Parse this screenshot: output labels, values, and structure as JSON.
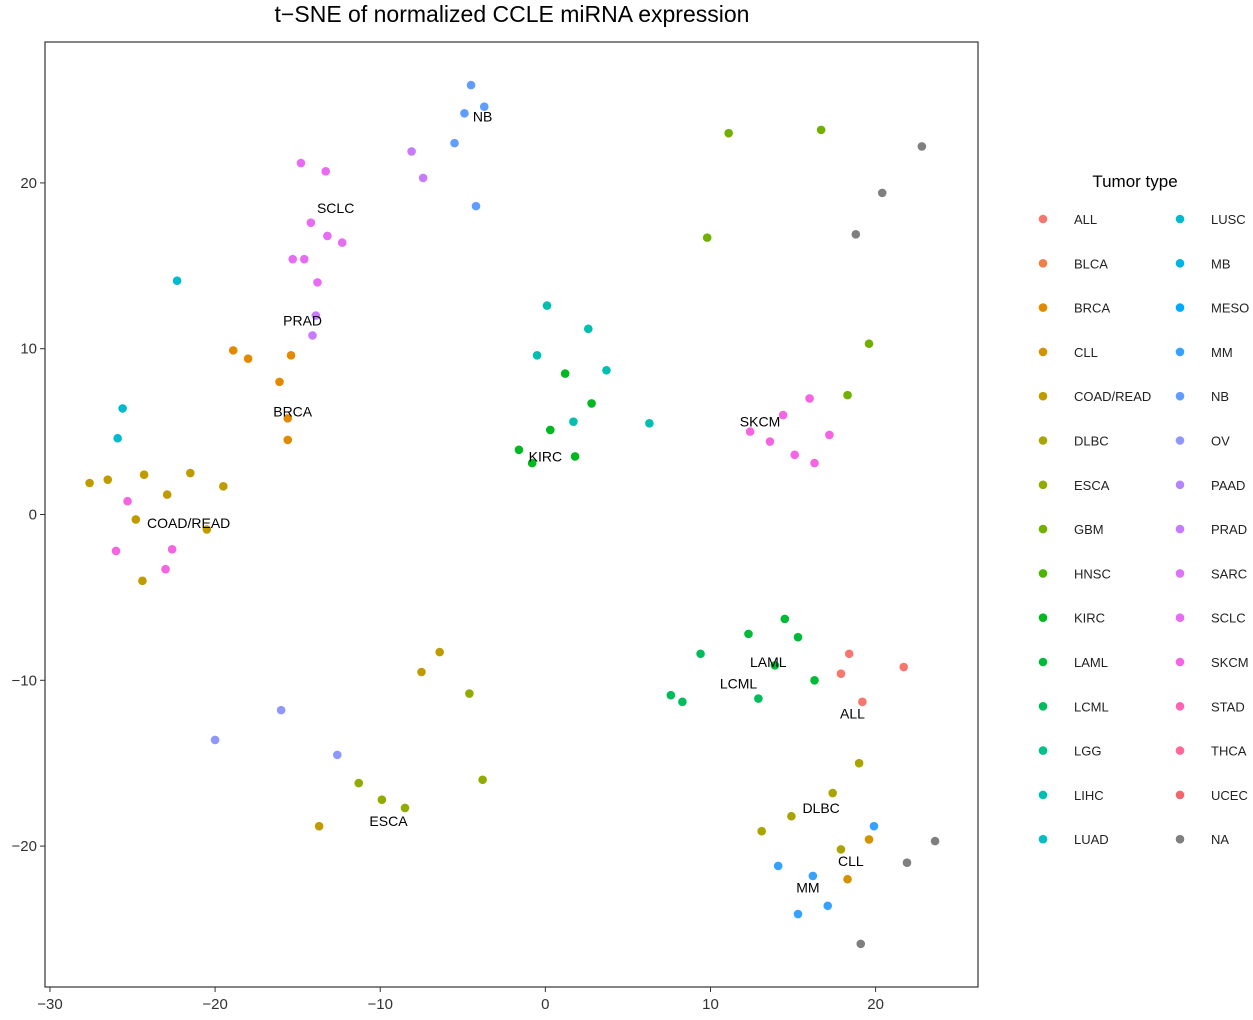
{
  "chart_data": {
    "type": "scatter",
    "title": "t−SNE of normalized CCLE miRNA expression",
    "xlabel": "",
    "ylabel": "",
    "xlim": [
      -30.3,
      26.2
    ],
    "ylim": [
      -28.5,
      28.5
    ],
    "x_ticks": [
      -30,
      -20,
      -10,
      0,
      10,
      20
    ],
    "x_tick_labels": [
      "−30",
      "−20",
      "−10",
      "0",
      "10",
      "20"
    ],
    "y_ticks": [
      -20,
      -10,
      0,
      10,
      20
    ],
    "y_tick_labels": [
      "−20",
      "−10",
      "0",
      "10",
      "20"
    ],
    "grid": false,
    "legend_position": "right",
    "legend_title": "Tumor type",
    "categories": [
      {
        "name": "ALL",
        "color": "#F8766D"
      },
      {
        "name": "BLCA",
        "color": "#EF7F47"
      },
      {
        "name": "BRCA",
        "color": "#E38900"
      },
      {
        "name": "CLL",
        "color": "#D39200"
      },
      {
        "name": "COAD/READ",
        "color": "#C09B00"
      },
      {
        "name": "DLBC",
        "color": "#A9A400"
      },
      {
        "name": "ESCA",
        "color": "#93AA00"
      },
      {
        "name": "GBM",
        "color": "#72B000"
      },
      {
        "name": "HNSC",
        "color": "#49B500"
      },
      {
        "name": "KIRC",
        "color": "#00B81F"
      },
      {
        "name": "LAML",
        "color": "#00BA38"
      },
      {
        "name": "LCML",
        "color": "#00BD5C"
      },
      {
        "name": "LGG",
        "color": "#00C08B"
      },
      {
        "name": "LIHC",
        "color": "#00BFB0"
      },
      {
        "name": "LUAD",
        "color": "#00BFC4"
      },
      {
        "name": "LUSC",
        "color": "#00BACF"
      },
      {
        "name": "MB",
        "color": "#00B4E5"
      },
      {
        "name": "MESO",
        "color": "#00A9FF"
      },
      {
        "name": "MM",
        "color": "#35A2FF"
      },
      {
        "name": "NB",
        "color": "#619CFF"
      },
      {
        "name": "OV",
        "color": "#8D97FF"
      },
      {
        "name": "PAAD",
        "color": "#B385FF"
      },
      {
        "name": "PRAD",
        "color": "#C77CFF"
      },
      {
        "name": "SARC",
        "color": "#DC71FA"
      },
      {
        "name": "SCLC",
        "color": "#E76BF3"
      },
      {
        "name": "SKCM",
        "color": "#F564E3"
      },
      {
        "name": "STAD",
        "color": "#FF64B0"
      },
      {
        "name": "THCA",
        "color": "#FF6A98"
      },
      {
        "name": "UCEC",
        "color": "#F2666E"
      },
      {
        "name": "NA",
        "color": "#7F7F7F"
      }
    ],
    "cluster_labels": [
      {
        "text": "NB",
        "x": -3.8,
        "y": 24
      },
      {
        "text": "SCLC",
        "x": -12.7,
        "y": 18.5
      },
      {
        "text": "PRAD",
        "x": -14.7,
        "y": 11.7
      },
      {
        "text": "BRCA",
        "x": -15.3,
        "y": 6.2
      },
      {
        "text": "COAD/READ",
        "x": -21.6,
        "y": -0.5
      },
      {
        "text": "KIRC",
        "x": 0,
        "y": 3.5
      },
      {
        "text": "SKCM",
        "x": 13,
        "y": 5.6
      },
      {
        "text": "LAML",
        "x": 13.5,
        "y": -8.9
      },
      {
        "text": "LCML",
        "x": 11.7,
        "y": -10.2
      },
      {
        "text": "ALL",
        "x": 18.6,
        "y": -12
      },
      {
        "text": "DLBC",
        "x": 16.7,
        "y": -17.7
      },
      {
        "text": "ESCA",
        "x": -9.5,
        "y": -18.5
      },
      {
        "text": "CLL",
        "x": 18.5,
        "y": -20.9
      },
      {
        "text": "MM",
        "x": 15.9,
        "y": -22.5
      }
    ],
    "points": [
      {
        "x": -4.5,
        "y": 25.9,
        "g": "NB"
      },
      {
        "x": -3.7,
        "y": 24.6,
        "g": "NB"
      },
      {
        "x": -4.9,
        "y": 24.2,
        "g": "NB"
      },
      {
        "x": -5.5,
        "y": 22.4,
        "g": "NB"
      },
      {
        "x": -4.2,
        "y": 18.6,
        "g": "NB"
      },
      {
        "x": -14.8,
        "y": 21.2,
        "g": "SCLC"
      },
      {
        "x": -13.3,
        "y": 20.7,
        "g": "SCLC"
      },
      {
        "x": -14.2,
        "y": 17.6,
        "g": "SCLC"
      },
      {
        "x": -13.2,
        "y": 16.8,
        "g": "SCLC"
      },
      {
        "x": -15.3,
        "y": 15.4,
        "g": "SCLC"
      },
      {
        "x": -14.6,
        "y": 15.4,
        "g": "SCLC"
      },
      {
        "x": -13.8,
        "y": 14.0,
        "g": "SCLC"
      },
      {
        "x": -12.3,
        "y": 16.4,
        "g": "SCLC"
      },
      {
        "x": -13.9,
        "y": 12.0,
        "g": "PRAD"
      },
      {
        "x": -14.1,
        "y": 10.8,
        "g": "PRAD"
      },
      {
        "x": -8.1,
        "y": 21.9,
        "g": "PRAD"
      },
      {
        "x": -7.4,
        "y": 20.3,
        "g": "PRAD"
      },
      {
        "x": -18.9,
        "y": 9.9,
        "g": "BRCA"
      },
      {
        "x": -18.0,
        "y": 9.4,
        "g": "BRCA"
      },
      {
        "x": -16.1,
        "y": 8.0,
        "g": "BRCA"
      },
      {
        "x": -15.6,
        "y": 5.8,
        "g": "BRCA"
      },
      {
        "x": -15.6,
        "y": 4.5,
        "g": "BRCA"
      },
      {
        "x": -15.4,
        "y": 9.6,
        "g": "BRCA"
      },
      {
        "x": -27.6,
        "y": 1.9,
        "g": "COAD/READ"
      },
      {
        "x": -26.5,
        "y": 2.1,
        "g": "COAD/READ"
      },
      {
        "x": -24.3,
        "y": 2.4,
        "g": "COAD/READ"
      },
      {
        "x": -21.5,
        "y": 2.5,
        "g": "COAD/READ"
      },
      {
        "x": -24.8,
        "y": -0.3,
        "g": "COAD/READ"
      },
      {
        "x": -22.9,
        "y": 1.2,
        "g": "COAD/READ"
      },
      {
        "x": -20.5,
        "y": -0.9,
        "g": "COAD/READ"
      },
      {
        "x": -19.5,
        "y": 1.7,
        "g": "COAD/READ"
      },
      {
        "x": -24.4,
        "y": -4.0,
        "g": "COAD/READ"
      },
      {
        "x": -25.3,
        "y": 0.8,
        "g": "SKCM"
      },
      {
        "x": -23.0,
        "y": -3.3,
        "g": "SKCM"
      },
      {
        "x": -26.0,
        "y": -2.2,
        "g": "SKCM"
      },
      {
        "x": -22.6,
        "y": -2.1,
        "g": "SKCM"
      },
      {
        "x": -25.6,
        "y": 6.4,
        "g": "LUSC"
      },
      {
        "x": -25.9,
        "y": 4.6,
        "g": "LUSC"
      },
      {
        "x": -22.3,
        "y": 14.1,
        "g": "LUSC"
      },
      {
        "x": 0.1,
        "y": 12.6,
        "g": "LIHC"
      },
      {
        "x": 2.6,
        "y": 11.2,
        "g": "LIHC"
      },
      {
        "x": -0.5,
        "y": 9.6,
        "g": "LIHC"
      },
      {
        "x": 1.7,
        "y": 5.6,
        "g": "LIHC"
      },
      {
        "x": 3.7,
        "y": 8.7,
        "g": "LIHC"
      },
      {
        "x": 6.3,
        "y": 5.5,
        "g": "LIHC"
      },
      {
        "x": 1.2,
        "y": 8.5,
        "g": "KIRC"
      },
      {
        "x": -1.6,
        "y": 3.9,
        "g": "KIRC"
      },
      {
        "x": 0.3,
        "y": 5.1,
        "g": "KIRC"
      },
      {
        "x": 2.8,
        "y": 6.7,
        "g": "KIRC"
      },
      {
        "x": 1.8,
        "y": 3.5,
        "g": "KIRC"
      },
      {
        "x": -0.8,
        "y": 3.1,
        "g": "KIRC"
      },
      {
        "x": 11.1,
        "y": 23.0,
        "g": "GBM"
      },
      {
        "x": 16.7,
        "y": 23.2,
        "g": "GBM"
      },
      {
        "x": 9.8,
        "y": 16.7,
        "g": "GBM"
      },
      {
        "x": 19.6,
        "y": 10.3,
        "g": "GBM"
      },
      {
        "x": 18.3,
        "y": 7.2,
        "g": "GBM"
      },
      {
        "x": 14.4,
        "y": 6.0,
        "g": "SKCM"
      },
      {
        "x": 16.0,
        "y": 7.0,
        "g": "SKCM"
      },
      {
        "x": 13.6,
        "y": 4.4,
        "g": "SKCM"
      },
      {
        "x": 17.2,
        "y": 4.8,
        "g": "SKCM"
      },
      {
        "x": 15.1,
        "y": 3.6,
        "g": "SKCM"
      },
      {
        "x": 16.3,
        "y": 3.1,
        "g": "SKCM"
      },
      {
        "x": 12.4,
        "y": 5.0,
        "g": "SKCM"
      },
      {
        "x": 12.3,
        "y": -7.2,
        "g": "LAML"
      },
      {
        "x": 14.5,
        "y": -6.3,
        "g": "LAML"
      },
      {
        "x": 15.3,
        "y": -7.4,
        "g": "LAML"
      },
      {
        "x": 13.9,
        "y": -9.1,
        "g": "LAML"
      },
      {
        "x": 16.3,
        "y": -10.0,
        "g": "LAML"
      },
      {
        "x": 9.4,
        "y": -8.4,
        "g": "LCML"
      },
      {
        "x": 7.6,
        "y": -10.9,
        "g": "LCML"
      },
      {
        "x": 8.3,
        "y": -11.3,
        "g": "LCML"
      },
      {
        "x": 12.9,
        "y": -11.1,
        "g": "LCML"
      },
      {
        "x": 18.4,
        "y": -8.4,
        "g": "ALL"
      },
      {
        "x": 19.2,
        "y": -11.3,
        "g": "ALL"
      },
      {
        "x": 21.7,
        "y": -9.2,
        "g": "ALL"
      },
      {
        "x": 17.9,
        "y": -9.6,
        "g": "ALL"
      },
      {
        "x": 14.9,
        "y": -18.2,
        "g": "DLBC"
      },
      {
        "x": 17.4,
        "y": -16.8,
        "g": "DLBC"
      },
      {
        "x": 13.1,
        "y": -19.1,
        "g": "DLBC"
      },
      {
        "x": 17.9,
        "y": -20.2,
        "g": "DLBC"
      },
      {
        "x": 19.0,
        "y": -15.0,
        "g": "DLBC"
      },
      {
        "x": 14.1,
        "y": -21.2,
        "g": "MM"
      },
      {
        "x": 15.3,
        "y": -24.1,
        "g": "MM"
      },
      {
        "x": 17.1,
        "y": -23.6,
        "g": "MM"
      },
      {
        "x": 16.2,
        "y": -21.8,
        "g": "MM"
      },
      {
        "x": 19.9,
        "y": -18.8,
        "g": "MM"
      },
      {
        "x": 19.6,
        "y": -19.6,
        "g": "CLL"
      },
      {
        "x": 18.3,
        "y": -22.0,
        "g": "CLL"
      },
      {
        "x": -9.9,
        "y": -17.2,
        "g": "ESCA"
      },
      {
        "x": -8.5,
        "y": -17.7,
        "g": "ESCA"
      },
      {
        "x": -11.3,
        "y": -16.2,
        "g": "ESCA"
      },
      {
        "x": -3.8,
        "y": -16.0,
        "g": "ESCA"
      },
      {
        "x": -4.6,
        "y": -10.8,
        "g": "ESCA"
      },
      {
        "x": -20.0,
        "y": -13.6,
        "g": "OV"
      },
      {
        "x": -16.0,
        "y": -11.8,
        "g": "OV"
      },
      {
        "x": -12.6,
        "y": -14.5,
        "g": "OV"
      },
      {
        "x": -7.5,
        "y": -9.5,
        "g": "COAD/READ"
      },
      {
        "x": -6.4,
        "y": -8.3,
        "g": "COAD/READ"
      },
      {
        "x": -13.7,
        "y": -18.8,
        "g": "COAD/READ"
      },
      {
        "x": 22.8,
        "y": 22.2,
        "g": "NA"
      },
      {
        "x": 20.4,
        "y": 19.4,
        "g": "NA"
      },
      {
        "x": 18.8,
        "y": 16.9,
        "g": "NA"
      },
      {
        "x": 23.6,
        "y": -19.7,
        "g": "NA"
      },
      {
        "x": 21.9,
        "y": -21.0,
        "g": "NA"
      },
      {
        "x": 19.1,
        "y": -25.9,
        "g": "NA"
      }
    ]
  }
}
